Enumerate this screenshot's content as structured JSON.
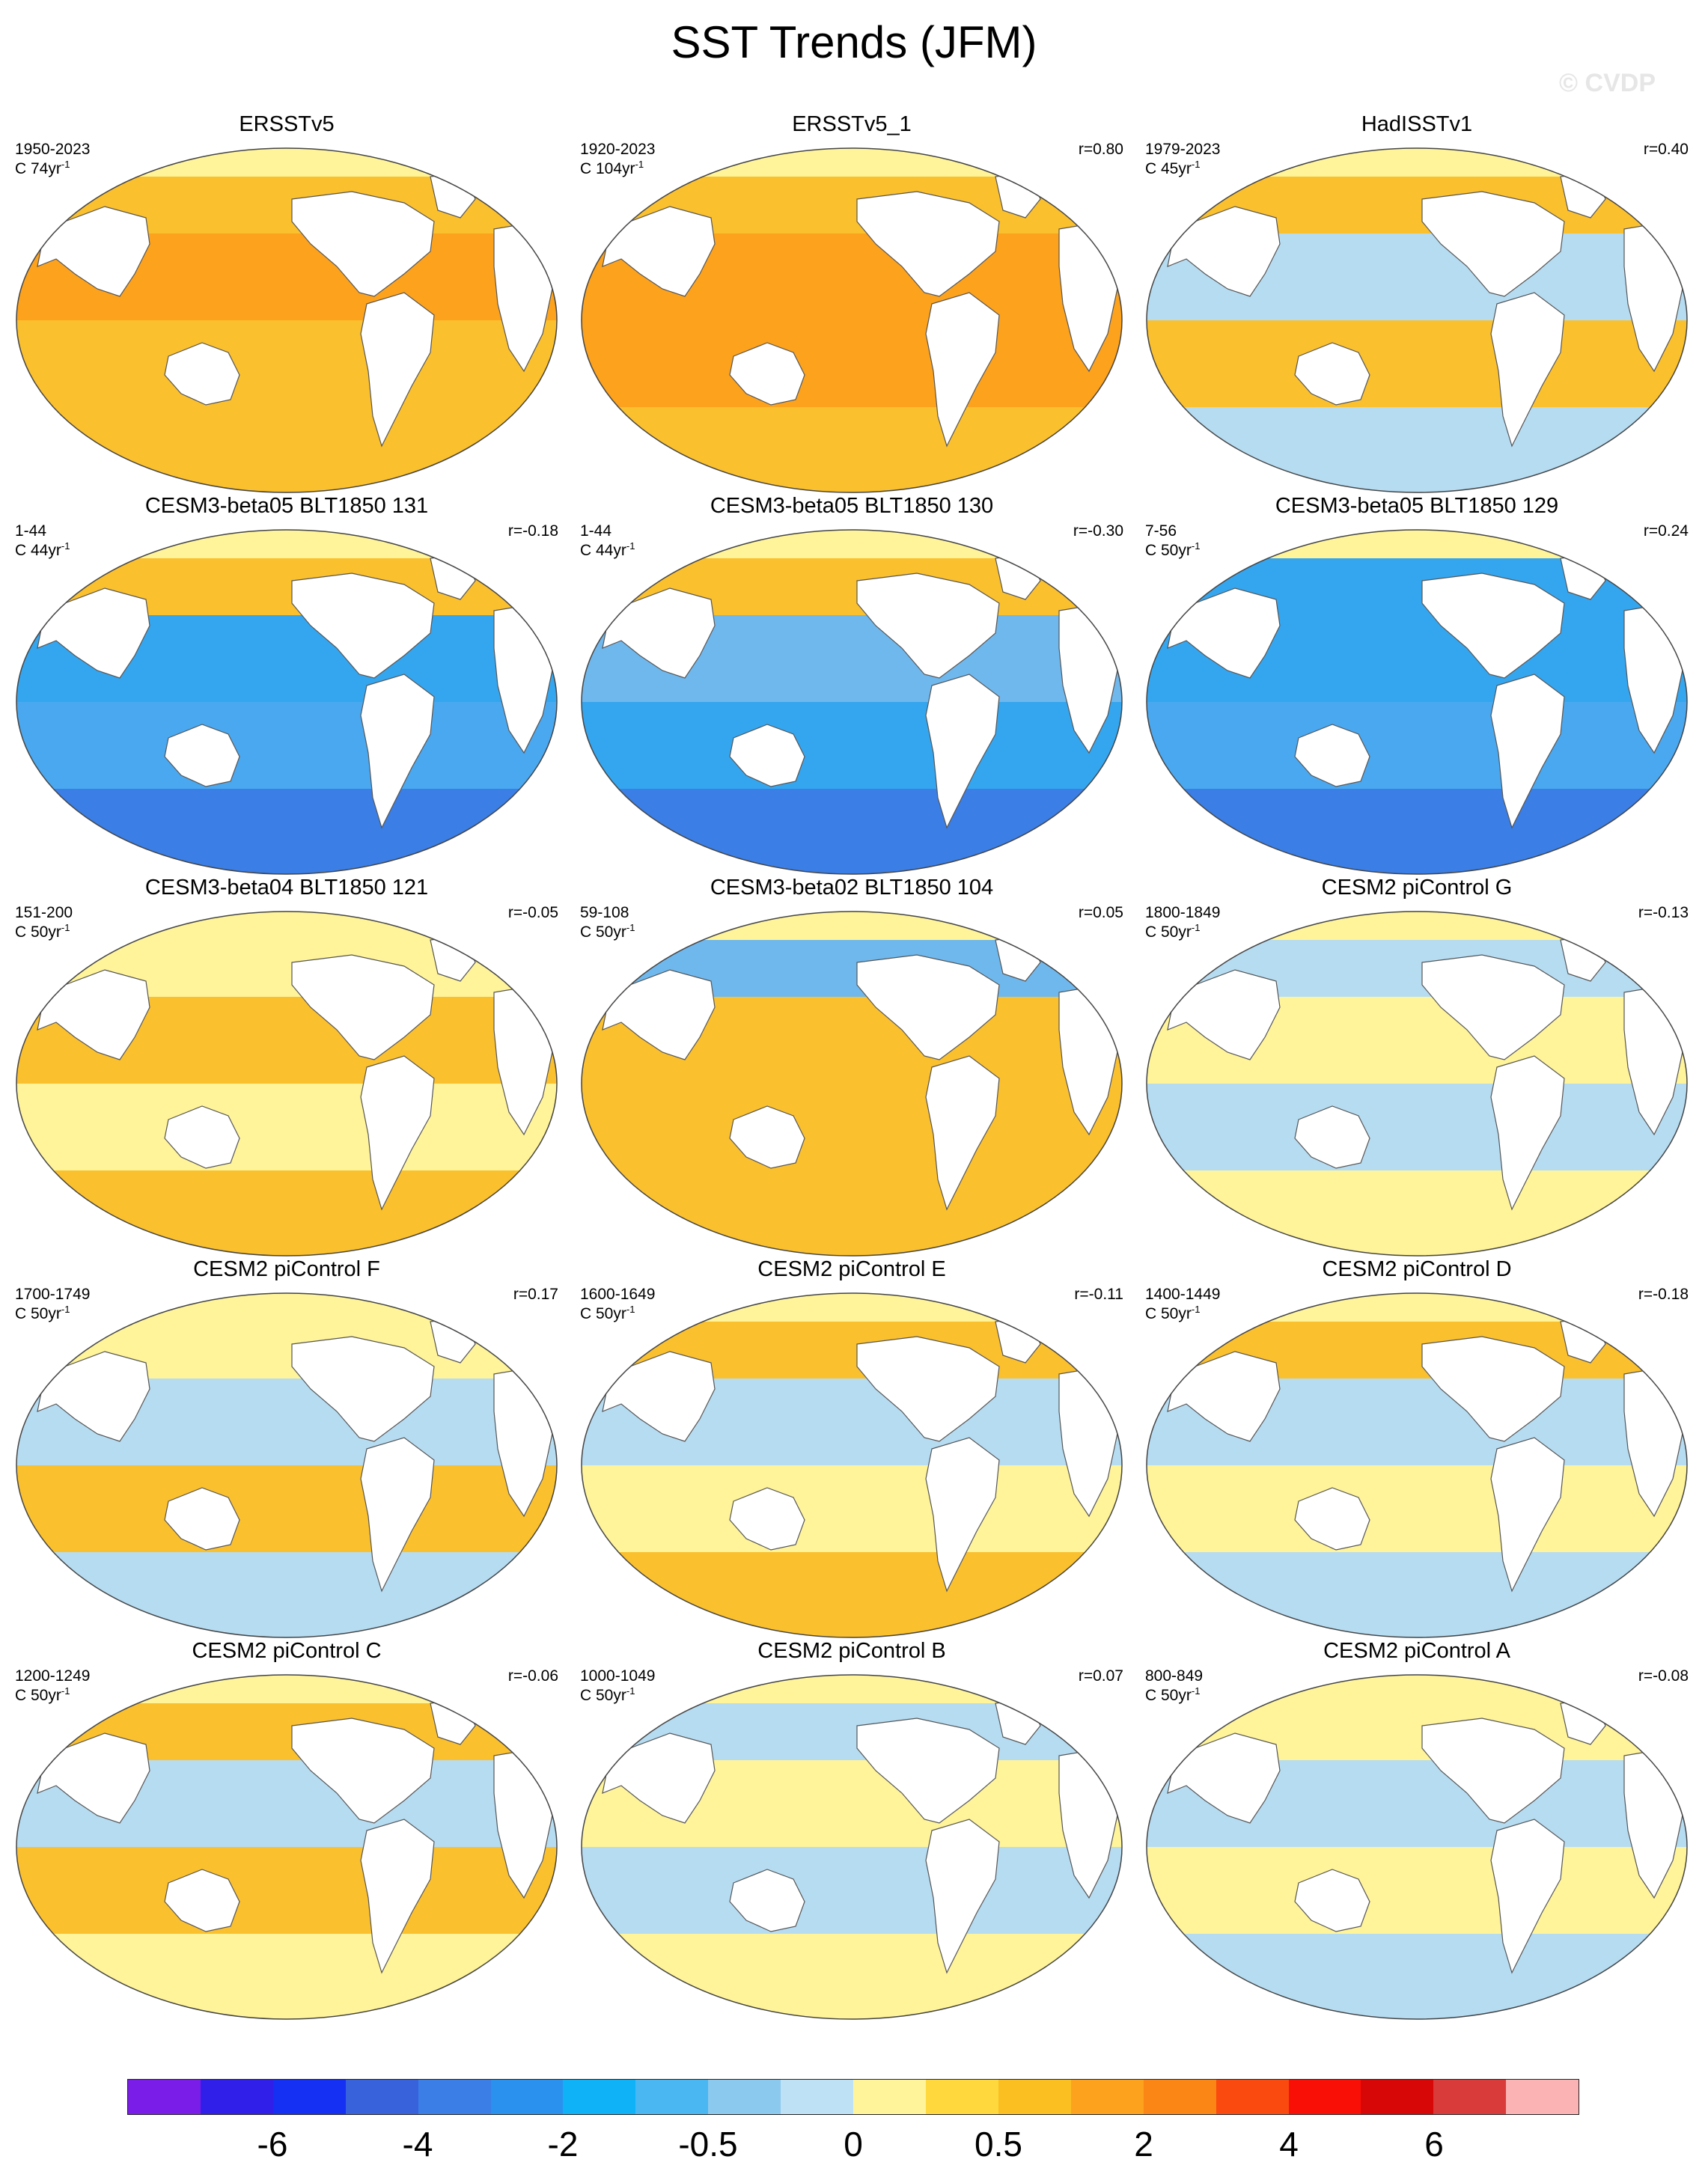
{
  "title": "SST Trends (JFM)",
  "watermark": "© CVDP",
  "panels": [
    {
      "title": "ERSSTv5",
      "period": "1950-2023",
      "units": "C 74yr",
      "unit_exp": "-1",
      "corr": "",
      "land": "#ffffff",
      "ocean": [
        "#fbc02d",
        "#fda21c",
        "#fbc02d",
        "#fbc02d"
      ]
    },
    {
      "title": "ERSSTv5_1",
      "period": "1920-2023",
      "units": "C 104yr",
      "unit_exp": "-1",
      "corr": "r=0.80",
      "land": "#ffffff",
      "ocean": [
        "#fbc02d",
        "#fda21c",
        "#fda21c",
        "#fbc02d"
      ]
    },
    {
      "title": "HadISSTv1",
      "period": "1979-2023",
      "units": "C 45yr",
      "unit_exp": "-1",
      "corr": "r=0.40",
      "land": "#ffffff",
      "ocean": [
        "#fbc02d",
        "#b6dcf2",
        "#fbc02d",
        "#b6dcf2"
      ]
    },
    {
      "title": "CESM3-beta05 BLT1850 131",
      "period": "1-44",
      "units": "C 44yr",
      "unit_exp": "-1",
      "corr": "r=-0.18",
      "land": "#ffffff",
      "ocean": [
        "#fbc02d",
        "#34a6f0",
        "#4aa8f0",
        "#3a7ee6"
      ]
    },
    {
      "title": "CESM3-beta05 BLT1850 130",
      "period": "1-44",
      "units": "C 44yr",
      "unit_exp": "-1",
      "corr": "r=-0.30",
      "land": "#ffffff",
      "ocean": [
        "#fbc02d",
        "#6fb8ee",
        "#34a6f0",
        "#3a7ee6"
      ]
    },
    {
      "title": "CESM3-beta05 BLT1850 129",
      "period": "7-56",
      "units": "C 50yr",
      "unit_exp": "-1",
      "corr": "r=0.24",
      "land": "#ffffff",
      "ocean": [
        "#34a6f0",
        "#34a6f0",
        "#4aa8f0",
        "#3a7ee6"
      ]
    },
    {
      "title": "CESM3-beta04 BLT1850 121",
      "period": "151-200",
      "units": "C 50yr",
      "unit_exp": "-1",
      "corr": "r=-0.05",
      "land": "#ffffff",
      "ocean": [
        "#fff49a",
        "#fbc02d",
        "#fff49a",
        "#fbc02d"
      ]
    },
    {
      "title": "CESM3-beta02 BLT1850 104",
      "period": "59-108",
      "units": "C 50yr",
      "unit_exp": "-1",
      "corr": "r=0.05",
      "land": "#ffffff",
      "ocean": [
        "#6fb8ee",
        "#fbc02d",
        "#fbc02d",
        "#fbc02d"
      ]
    },
    {
      "title": "CESM2 piControl G",
      "period": "1800-1849",
      "units": "C 50yr",
      "unit_exp": "-1",
      "corr": "r=-0.13",
      "land": "#ffffff",
      "ocean": [
        "#b6dcf2",
        "#fff49a",
        "#b6dcf2",
        "#fff49a"
      ]
    },
    {
      "title": "CESM2 piControl F",
      "period": "1700-1749",
      "units": "C 50yr",
      "unit_exp": "-1",
      "corr": "r=0.17",
      "land": "#ffffff",
      "ocean": [
        "#fff49a",
        "#b6dcf2",
        "#fbc02d",
        "#b6dcf2"
      ]
    },
    {
      "title": "CESM2 piControl E",
      "period": "1600-1649",
      "units": "C 50yr",
      "unit_exp": "-1",
      "corr": "r=-0.11",
      "land": "#ffffff",
      "ocean": [
        "#fbc02d",
        "#b6dcf2",
        "#fff49a",
        "#fbc02d"
      ]
    },
    {
      "title": "CESM2 piControl D",
      "period": "1400-1449",
      "units": "C 50yr",
      "unit_exp": "-1",
      "corr": "r=-0.18",
      "land": "#ffffff",
      "ocean": [
        "#fbc02d",
        "#b6dcf2",
        "#fff49a",
        "#b6dcf2"
      ]
    },
    {
      "title": "CESM2 piControl C",
      "period": "1200-1249",
      "units": "C 50yr",
      "unit_exp": "-1",
      "corr": "r=-0.06",
      "land": "#ffffff",
      "ocean": [
        "#fbc02d",
        "#b6dcf2",
        "#fbc02d",
        "#fff49a"
      ]
    },
    {
      "title": "CESM2 piControl B",
      "period": "1000-1049",
      "units": "C 50yr",
      "unit_exp": "-1",
      "corr": "r=0.07",
      "land": "#ffffff",
      "ocean": [
        "#b6dcf2",
        "#fff49a",
        "#b6dcf2",
        "#fff49a"
      ]
    },
    {
      "title": "CESM2 piControl A",
      "period": "800-849",
      "units": "C 50yr",
      "unit_exp": "-1",
      "corr": "r=-0.08",
      "land": "#ffffff",
      "ocean": [
        "#fff49a",
        "#b6dcf2",
        "#fff49a",
        "#b6dcf2"
      ]
    }
  ],
  "colorbar": {
    "colors": [
      "#7a1de8",
      "#2f1fe8",
      "#1530f2",
      "#3862dc",
      "#3a7ee6",
      "#2a92ee",
      "#10b2f7",
      "#4ab6f2",
      "#8cc9ee",
      "#bfe1f6",
      "#fff49a",
      "#fed83c",
      "#fbbf22",
      "#fda21c",
      "#fb8515",
      "#fb4a10",
      "#f90f06",
      "#d70707",
      "#d93a3a",
      "#fbb3b3"
    ],
    "labels": [
      "-6",
      "-4",
      "-2",
      "-0.5",
      "0",
      "0.5",
      "2",
      "4",
      "6"
    ]
  }
}
